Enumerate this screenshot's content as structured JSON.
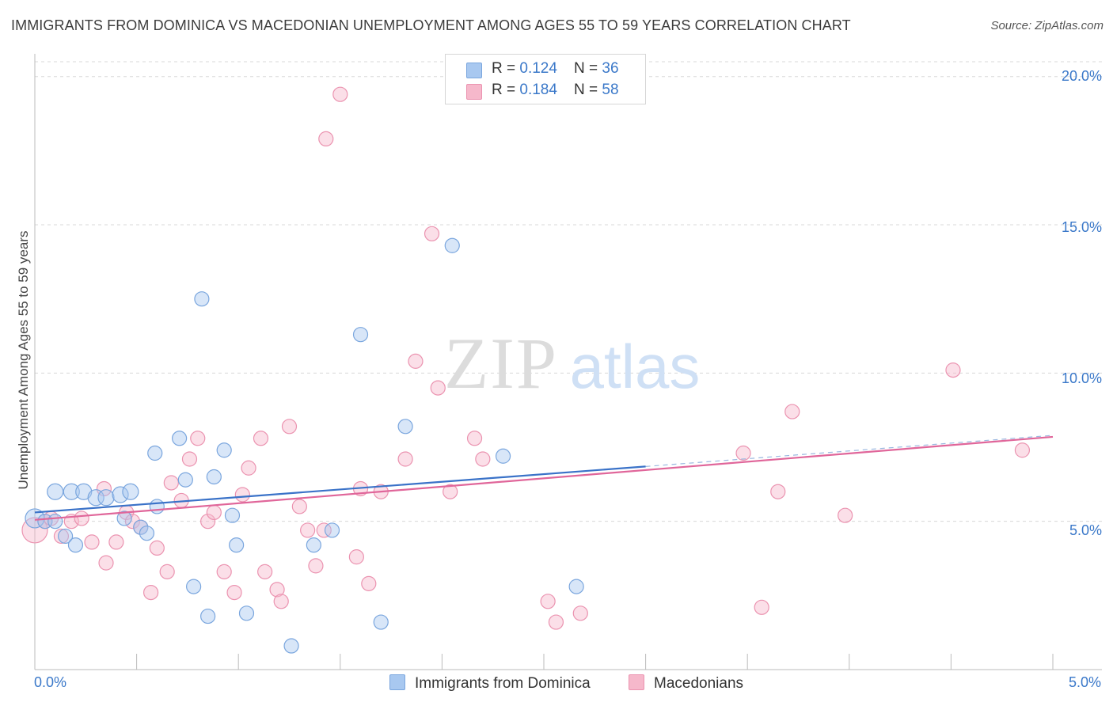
{
  "title": "IMMIGRANTS FROM DOMINICA VS MACEDONIAN UNEMPLOYMENT AMONG AGES 55 TO 59 YEARS CORRELATION CHART",
  "source": "Source: ZipAtlas.com",
  "watermark": {
    "zip": "ZIP",
    "atlas": "atlas"
  },
  "legend": {
    "rows": [
      {
        "r_label": "R = ",
        "r_value": "0.124",
        "n_label": "N = ",
        "n_value": "36"
      },
      {
        "r_label": "R = ",
        "r_value": "0.184",
        "n_label": "N = ",
        "n_value": "58"
      }
    ]
  },
  "colors": {
    "blue_fill": "#a8c8f0",
    "blue_stroke": "#7aa6de",
    "blue_line": "#3a72c8",
    "pink_fill": "#f6b8cb",
    "pink_stroke": "#eb93b0",
    "pink_line": "#e0669a",
    "grid": "#d8d8d8",
    "axis_text": "#3a78c9"
  },
  "chart_data": {
    "type": "scatter",
    "title": "IMMIGRANTS FROM DOMINICA VS MACEDONIAN UNEMPLOYMENT AMONG AGES 55 TO 59 YEARS CORRELATION CHART",
    "xlabel": "",
    "ylabel": "Unemployment Among Ages 55 to 59 years",
    "xlim": [
      0,
      5
    ],
    "ylim": [
      0,
      20.5
    ],
    "x_tick_labels": [
      "0.0%",
      "5.0%"
    ],
    "y_ticks": [
      5,
      10,
      15,
      20
    ],
    "y_tick_labels": [
      "5.0%",
      "10.0%",
      "15.0%",
      "20.0%"
    ],
    "series": [
      {
        "name": "Immigrants from Dominica",
        "color": "blue",
        "trend": {
          "x0": 0.0,
          "y0": 5.3,
          "x1": 3.0,
          "y1": 6.85,
          "dash_to_x": 5.0,
          "dash_to_y": 7.9
        },
        "points": [
          [
            0.0,
            5.1
          ],
          [
            0.05,
            5.0
          ],
          [
            0.1,
            6.0
          ],
          [
            0.18,
            6.0
          ],
          [
            0.24,
            6.0
          ],
          [
            0.3,
            5.8
          ],
          [
            0.35,
            5.8
          ],
          [
            0.42,
            5.9
          ],
          [
            0.47,
            6.0
          ],
          [
            0.15,
            4.5
          ],
          [
            0.2,
            4.2
          ],
          [
            0.44,
            5.1
          ],
          [
            0.52,
            4.8
          ],
          [
            0.55,
            4.6
          ],
          [
            0.6,
            5.5
          ],
          [
            0.59,
            7.3
          ],
          [
            0.71,
            7.8
          ],
          [
            0.74,
            6.4
          ],
          [
            0.78,
            2.8
          ],
          [
            0.85,
            1.8
          ],
          [
            0.82,
            12.5
          ],
          [
            0.88,
            6.5
          ],
          [
            0.93,
            7.4
          ],
          [
            0.97,
            5.2
          ],
          [
            0.99,
            4.2
          ],
          [
            1.04,
            1.9
          ],
          [
            1.26,
            0.8
          ],
          [
            1.37,
            4.2
          ],
          [
            1.46,
            4.7
          ],
          [
            1.6,
            11.3
          ],
          [
            1.7,
            1.6
          ],
          [
            1.82,
            8.2
          ],
          [
            2.05,
            14.3
          ],
          [
            2.3,
            7.2
          ],
          [
            2.66,
            2.8
          ],
          [
            0.1,
            5.0
          ]
        ]
      },
      {
        "name": "Macedonians",
        "color": "pink",
        "trend": {
          "x0": 0.0,
          "y0": 5.05,
          "x1": 5.0,
          "y1": 7.85
        },
        "points": [
          [
            0.0,
            4.7
          ],
          [
            0.05,
            5.0
          ],
          [
            0.08,
            5.1
          ],
          [
            0.13,
            4.5
          ],
          [
            0.18,
            5.0
          ],
          [
            0.23,
            5.1
          ],
          [
            0.28,
            4.3
          ],
          [
            0.34,
            6.1
          ],
          [
            0.35,
            3.6
          ],
          [
            0.4,
            4.3
          ],
          [
            0.45,
            5.3
          ],
          [
            0.48,
            5.0
          ],
          [
            0.52,
            4.8
          ],
          [
            0.57,
            2.6
          ],
          [
            0.6,
            4.1
          ],
          [
            0.65,
            3.3
          ],
          [
            0.67,
            6.3
          ],
          [
            0.72,
            5.7
          ],
          [
            0.76,
            7.1
          ],
          [
            0.8,
            7.8
          ],
          [
            0.85,
            5.0
          ],
          [
            0.88,
            5.3
          ],
          [
            0.93,
            3.3
          ],
          [
            0.98,
            2.6
          ],
          [
            1.02,
            5.9
          ],
          [
            1.05,
            6.8
          ],
          [
            1.11,
            7.8
          ],
          [
            1.13,
            3.3
          ],
          [
            1.19,
            2.7
          ],
          [
            1.21,
            2.3
          ],
          [
            1.25,
            8.2
          ],
          [
            1.3,
            5.5
          ],
          [
            1.34,
            4.7
          ],
          [
            1.38,
            3.5
          ],
          [
            1.42,
            4.7
          ],
          [
            1.43,
            17.9
          ],
          [
            1.5,
            19.4
          ],
          [
            1.58,
            3.8
          ],
          [
            1.6,
            6.1
          ],
          [
            1.64,
            2.9
          ],
          [
            1.7,
            6.0
          ],
          [
            1.82,
            7.1
          ],
          [
            1.87,
            10.4
          ],
          [
            1.95,
            14.7
          ],
          [
            1.98,
            9.5
          ],
          [
            2.04,
            6.0
          ],
          [
            2.16,
            7.8
          ],
          [
            2.2,
            7.1
          ],
          [
            2.52,
            2.3
          ],
          [
            2.56,
            1.6
          ],
          [
            2.68,
            1.9
          ],
          [
            3.48,
            7.3
          ],
          [
            3.57,
            2.1
          ],
          [
            3.65,
            6.0
          ],
          [
            3.72,
            8.7
          ],
          [
            3.98,
            5.2
          ],
          [
            4.51,
            10.1
          ],
          [
            4.85,
            7.4
          ]
        ]
      }
    ]
  },
  "bottom_legend": {
    "series1": "Immigrants from Dominica",
    "series2": "Macedonians"
  }
}
